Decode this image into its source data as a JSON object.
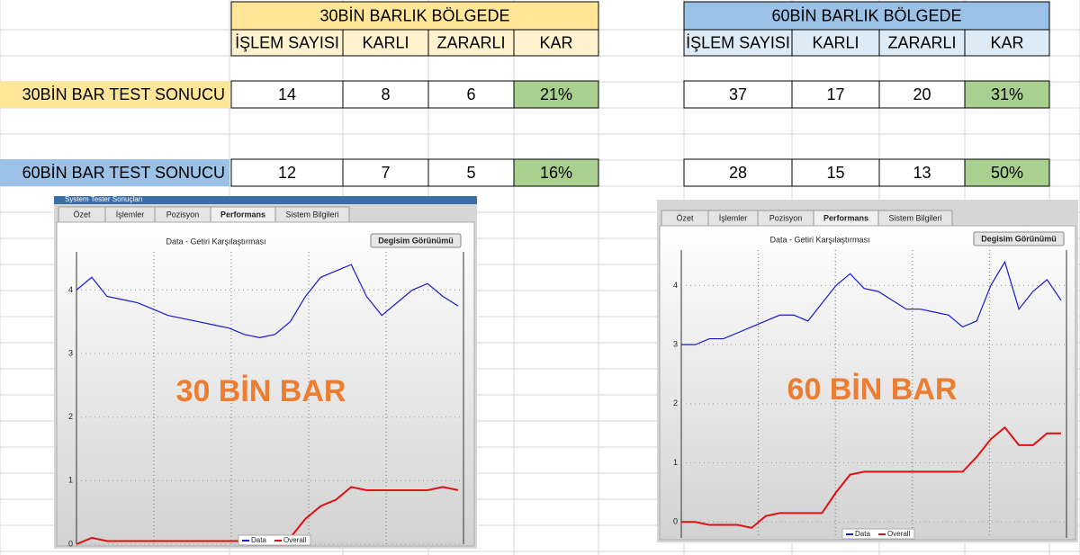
{
  "sheet": {
    "sections": [
      {
        "title": "30BİN BARLIK BÖLGEDE",
        "headers": [
          "İŞLEM SAYISI",
          "KARLI",
          "ZARARLI",
          "KAR"
        ]
      },
      {
        "title": "60BİN BARLIK BÖLGEDE",
        "headers": [
          "İŞLEM SAYISI",
          "KARLI",
          "ZARARLI",
          "KAR"
        ]
      }
    ],
    "rows": [
      {
        "label": "30BİN BAR TEST SONUCU",
        "cells": [
          [
            14,
            8,
            6,
            "21%"
          ],
          [
            37,
            17,
            20,
            "31%"
          ]
        ]
      },
      {
        "label": "60BİN BAR TEST SONUCU",
        "cells": [
          [
            12,
            7,
            5,
            "16%"
          ],
          [
            28,
            15,
            13,
            "50%"
          ]
        ]
      }
    ]
  },
  "windows": [
    {
      "window_title": "System Tester Sonuçları",
      "tabs": [
        "Özet",
        "İşlemler",
        "Pozisyon",
        "Performans",
        "Sistem Bilgileri"
      ],
      "button": "Degisim Görünümü",
      "chart_title": "Data - Getiri Karşılaştırması",
      "overlay": "30 BİN BAR",
      "ylim": [
        0,
        4.6
      ],
      "yticks": [
        0,
        1,
        2,
        3,
        4
      ],
      "series": [
        {
          "name": "Data",
          "color": "#1a1ad0",
          "values": [
            4.0,
            4.2,
            3.9,
            3.85,
            3.8,
            3.7,
            3.6,
            3.55,
            3.5,
            3.45,
            3.4,
            3.3,
            3.25,
            3.3,
            3.5,
            3.9,
            4.2,
            4.3,
            4.4,
            3.9,
            3.6,
            3.8,
            4.0,
            4.1,
            3.9,
            3.75
          ]
        },
        {
          "name": "Overall",
          "color": "#e01010",
          "values": [
            0,
            0.1,
            0.05,
            0.05,
            0.05,
            0.05,
            0.05,
            0.05,
            0.05,
            0.05,
            0.05,
            0.05,
            0.05,
            0.05,
            0.1,
            0.4,
            0.6,
            0.7,
            0.9,
            0.85,
            0.85,
            0.85,
            0.85,
            0.85,
            0.9,
            0.85
          ]
        }
      ]
    },
    {
      "tabs": [
        "Özet",
        "İşlemler",
        "Pozisyon",
        "Performans",
        "Sistem Bilgileri"
      ],
      "button": "Degisim Görünümü",
      "chart_title": "Data - Getiri Karşılaştırması",
      "overlay": "60 BİN BAR",
      "ylim": [
        -0.27,
        4.6
      ],
      "yticks": [
        0,
        1,
        2,
        3,
        4
      ],
      "series": [
        {
          "name": "Data",
          "color": "#1a1ad0",
          "values": [
            3.0,
            3.0,
            3.1,
            3.1,
            3.2,
            3.3,
            3.4,
            3.5,
            3.5,
            3.4,
            3.7,
            4.0,
            4.2,
            3.95,
            3.9,
            3.75,
            3.6,
            3.6,
            3.55,
            3.5,
            3.3,
            3.4,
            4.0,
            4.4,
            3.6,
            3.9,
            4.1,
            3.75
          ]
        },
        {
          "name": "Overall",
          "color": "#e01010",
          "values": [
            0,
            0,
            -0.05,
            -0.05,
            -0.05,
            -0.1,
            0.1,
            0.15,
            0.15,
            0.15,
            0.15,
            0.5,
            0.8,
            0.85,
            0.85,
            0.85,
            0.85,
            0.85,
            0.85,
            0.85,
            0.85,
            1.1,
            1.4,
            1.6,
            1.3,
            1.3,
            1.5,
            1.5
          ]
        }
      ]
    }
  ]
}
